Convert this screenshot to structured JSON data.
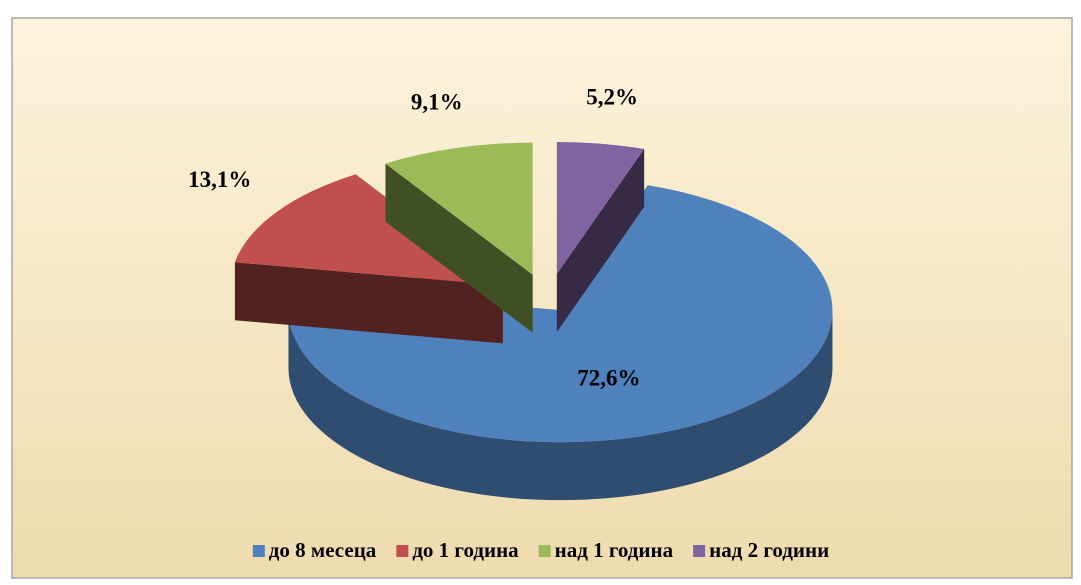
{
  "chart_data": {
    "type": "pie",
    "categories": [
      "до 8 месеца",
      "до 1 година",
      "над 1 година",
      "над 2 години"
    ],
    "values": [
      72.6,
      13.1,
      9.1,
      5.2
    ],
    "value_labels": [
      "72,6%",
      "13,1%",
      "9,1%",
      "5,2%"
    ],
    "colors": [
      "#4f81bd",
      "#c0504d",
      "#9bbb59",
      "#8064a2"
    ],
    "legend": "bottom"
  }
}
